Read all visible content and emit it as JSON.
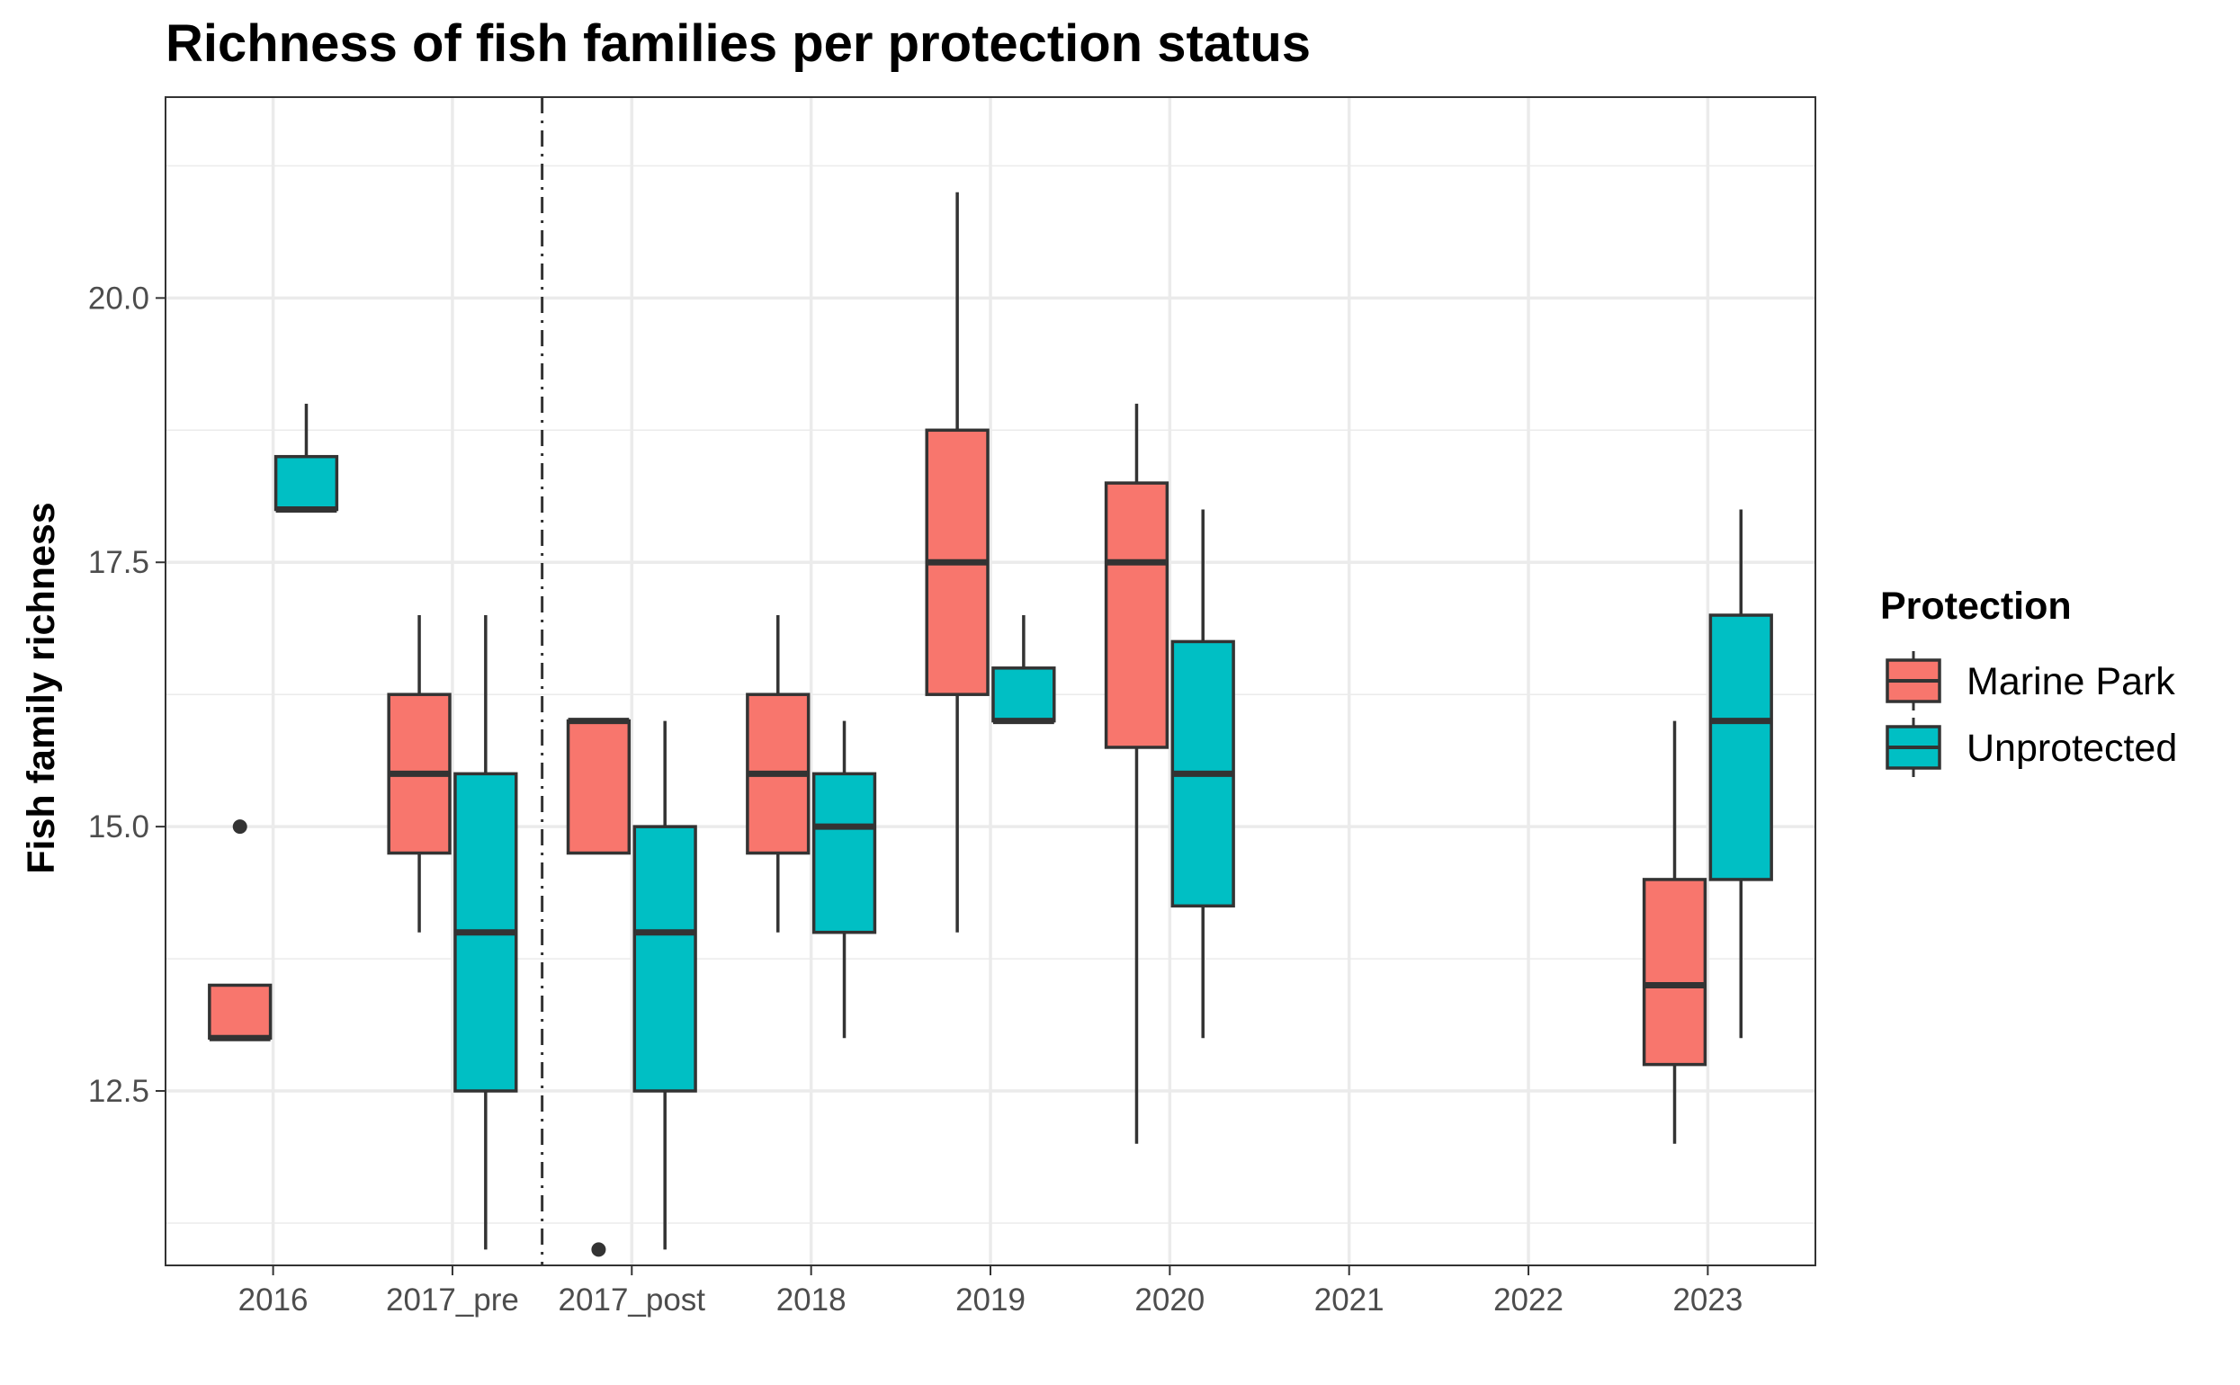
{
  "chart_data": {
    "type": "boxplot",
    "title": "Richness of fish families per protection status",
    "xlabel": "",
    "ylabel": "Fish family richness",
    "categories": [
      "2016",
      "2017_pre",
      "2017_post",
      "2018",
      "2019",
      "2020",
      "2021",
      "2022",
      "2023"
    ],
    "ylim": [
      10.85,
      21.9
    ],
    "yticks": [
      12.5,
      15.0,
      17.5,
      20.0
    ],
    "ytick_labels": [
      "12.5",
      "15.0",
      "17.5",
      "20.0"
    ],
    "grid": true,
    "legend": {
      "title": "Protection",
      "position": "right",
      "entries": [
        {
          "name": "Marine Park",
          "color": "#F8766D"
        },
        {
          "name": "Unprotected",
          "color": "#00BFC4"
        }
      ]
    },
    "vline": {
      "between": [
        "2017_pre",
        "2017_post"
      ],
      "style": "dot-dash"
    },
    "series": [
      {
        "name": "Marine Park",
        "color": "#F8766D",
        "boxes": [
          {
            "category": "2016",
            "whisker_low": 13.0,
            "q1": 13.0,
            "median": 13.0,
            "q3": 13.5,
            "whisker_high": 13.5,
            "outliers": [
              15.0
            ]
          },
          {
            "category": "2017_pre",
            "whisker_low": 14.0,
            "q1": 14.75,
            "median": 15.5,
            "q3": 16.25,
            "whisker_high": 17.0,
            "outliers": []
          },
          {
            "category": "2017_post",
            "whisker_low": 14.75,
            "q1": 14.75,
            "median": 16.0,
            "q3": 16.0,
            "whisker_high": 16.0,
            "outliers": [
              11.0
            ]
          },
          {
            "category": "2018",
            "whisker_low": 14.0,
            "q1": 14.75,
            "median": 15.5,
            "q3": 16.25,
            "whisker_high": 17.0,
            "outliers": []
          },
          {
            "category": "2019",
            "whisker_low": 14.0,
            "q1": 16.25,
            "median": 17.5,
            "q3": 18.75,
            "whisker_high": 21.0,
            "outliers": []
          },
          {
            "category": "2020",
            "whisker_low": 12.0,
            "q1": 15.75,
            "median": 17.5,
            "q3": 18.25,
            "whisker_high": 19.0,
            "outliers": []
          },
          {
            "category": "2023",
            "whisker_low": 12.0,
            "q1": 12.75,
            "median": 13.5,
            "q3": 14.5,
            "whisker_high": 16.0,
            "outliers": []
          }
        ]
      },
      {
        "name": "Unprotected",
        "color": "#00BFC4",
        "boxes": [
          {
            "category": "2016",
            "whisker_low": 18.0,
            "q1": 18.0,
            "median": 18.0,
            "q3": 18.5,
            "whisker_high": 19.0,
            "outliers": []
          },
          {
            "category": "2017_pre",
            "whisker_low": 11.0,
            "q1": 12.5,
            "median": 14.0,
            "q3": 15.5,
            "whisker_high": 17.0,
            "outliers": []
          },
          {
            "category": "2017_post",
            "whisker_low": 11.0,
            "q1": 12.5,
            "median": 14.0,
            "q3": 15.0,
            "whisker_high": 16.0,
            "outliers": []
          },
          {
            "category": "2018",
            "whisker_low": 13.0,
            "q1": 14.0,
            "median": 15.0,
            "q3": 15.5,
            "whisker_high": 16.0,
            "outliers": []
          },
          {
            "category": "2019",
            "whisker_low": 16.0,
            "q1": 16.0,
            "median": 16.0,
            "q3": 16.5,
            "whisker_high": 17.0,
            "outliers": []
          },
          {
            "category": "2020",
            "whisker_low": 13.0,
            "q1": 14.25,
            "median": 15.5,
            "q3": 16.75,
            "whisker_high": 18.0,
            "outliers": []
          },
          {
            "category": "2023",
            "whisker_low": 13.0,
            "q1": 14.5,
            "median": 16.0,
            "q3": 17.0,
            "whisker_high": 18.0,
            "outliers": []
          }
        ]
      }
    ]
  }
}
